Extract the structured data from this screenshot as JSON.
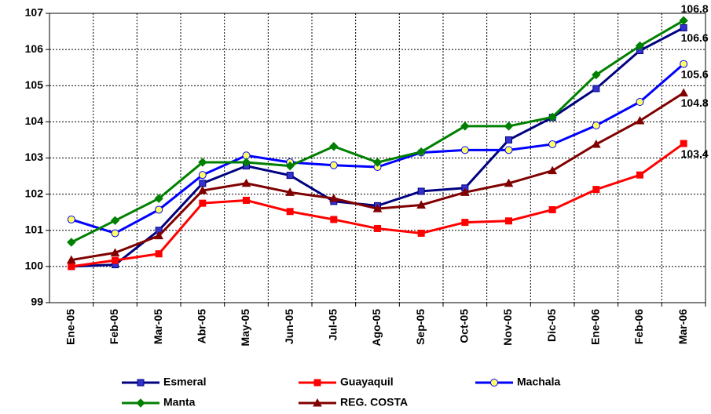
{
  "chart_data": {
    "type": "line",
    "categories": [
      "Ene-05",
      "Feb-05",
      "Mar-05",
      "Abr-05",
      "May-05",
      "Jun-05",
      "Jul-05",
      "Ago-05",
      "Sep-05",
      "Oct-05",
      "Nov-05",
      "Dic-05",
      "Ene-06",
      "Feb-06",
      "Mar-06"
    ],
    "series": [
      {
        "name": "Esmeral",
        "color": "#000080",
        "marker": "square",
        "marker_fill": "#3333cc",
        "values": [
          100.0,
          100.05,
          101.0,
          102.3,
          102.78,
          102.52,
          101.8,
          101.68,
          102.08,
          102.17,
          103.5,
          104.12,
          104.92,
          105.97,
          106.6
        ]
      },
      {
        "name": "Guayaquil",
        "color": "#ff0000",
        "marker": "square",
        "marker_fill": "#ff0000",
        "values": [
          100.0,
          100.17,
          100.35,
          101.75,
          101.83,
          101.52,
          101.3,
          101.05,
          100.92,
          101.22,
          101.26,
          101.57,
          102.13,
          102.53,
          103.4
        ]
      },
      {
        "name": "Machala",
        "color": "#0000ff",
        "marker": "circle",
        "marker_fill": "#ffff66",
        "values": [
          101.3,
          100.92,
          101.57,
          102.53,
          103.07,
          102.88,
          102.8,
          102.75,
          103.15,
          103.22,
          103.22,
          103.38,
          103.9,
          104.55,
          105.6
        ]
      },
      {
        "name": "Manta",
        "color": "#008000",
        "marker": "diamond",
        "marker_fill": "#008000",
        "values": [
          100.67,
          101.27,
          101.88,
          102.88,
          102.88,
          102.78,
          103.32,
          102.88,
          103.17,
          103.88,
          103.88,
          104.13,
          105.3,
          106.1,
          106.8
        ]
      },
      {
        "name": "REG. COSTA",
        "color": "#800000",
        "marker": "triangle",
        "marker_fill": "#800000",
        "values": [
          100.18,
          100.38,
          100.85,
          102.1,
          102.3,
          102.05,
          101.88,
          101.6,
          101.7,
          102.05,
          102.3,
          102.65,
          103.38,
          104.03,
          104.8
        ]
      }
    ],
    "ylim": [
      99,
      107
    ],
    "yticks": [
      99,
      100,
      101,
      102,
      103,
      104,
      105,
      106,
      107
    ],
    "grid": true
  }
}
